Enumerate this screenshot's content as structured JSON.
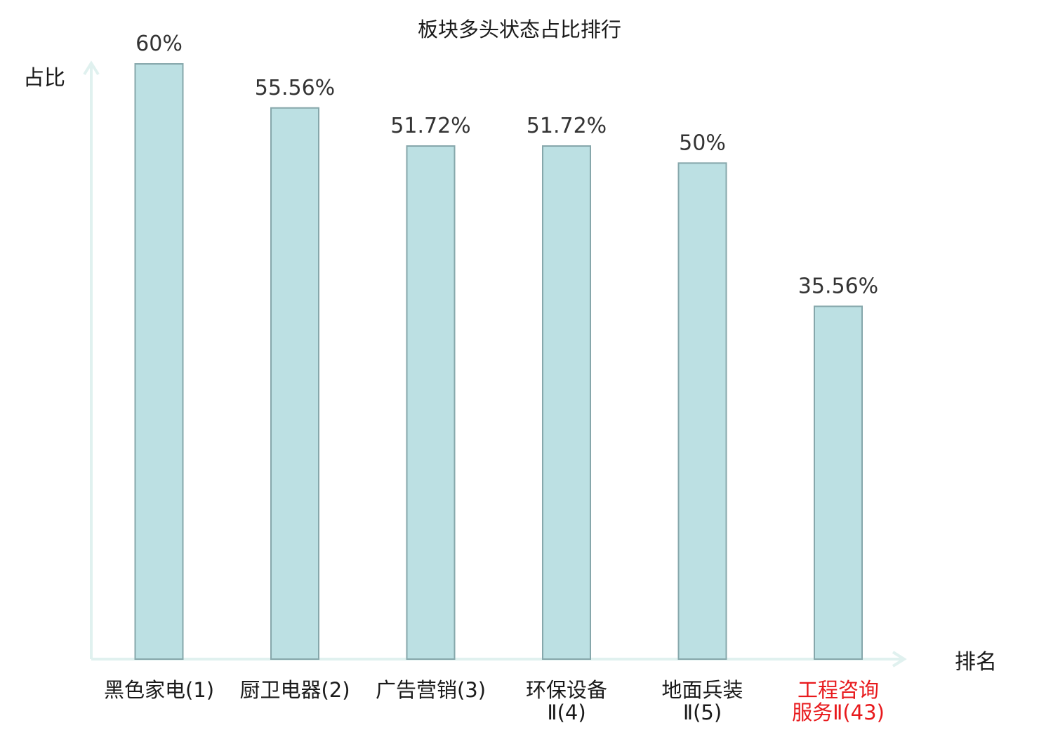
{
  "chart_data": {
    "type": "bar",
    "title": "板块多头状态占比排行",
    "ylabel": "占比",
    "xlabel": "排名",
    "categories": [
      [
        "黑色家电(1)"
      ],
      [
        "厨卫电器(2)"
      ],
      [
        "广告营销(3)"
      ],
      [
        "环保设备",
        "Ⅱ(4)"
      ],
      [
        "地面兵装",
        "Ⅱ(5)"
      ],
      [
        "工程咨询",
        "服务Ⅱ(43)"
      ]
    ],
    "values": [
      60,
      55.56,
      51.72,
      51.72,
      50,
      35.56
    ],
    "value_labels": [
      "60%",
      "55.56%",
      "51.72%",
      "51.72%",
      "50%",
      "35.56%"
    ],
    "highlight_index": 5,
    "ylim": [
      0,
      60
    ],
    "grid": false,
    "colors": {
      "bar_fill": "#bce0e3",
      "bar_stroke": "#86a7ab",
      "axis": "#e0f1ef",
      "tick_text": "#1a1a1a",
      "highlight_text": "#e8191c"
    }
  }
}
